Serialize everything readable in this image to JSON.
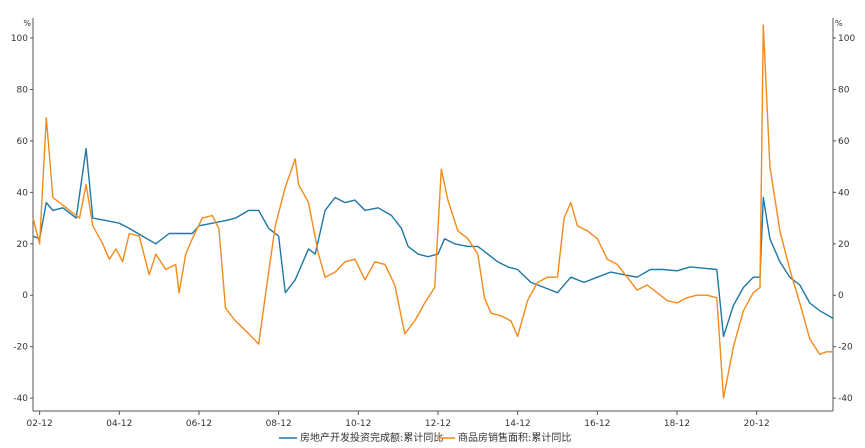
{
  "chart_data": {
    "type": "line",
    "y_unit_left": "%",
    "y_unit_right": "%",
    "ylim": [
      -45,
      110
    ],
    "yticks": [
      -40,
      -20,
      0,
      20,
      40,
      60,
      80,
      100
    ],
    "xlim": [
      "2002-10",
      "2022-11"
    ],
    "xticks": [
      {
        "date": "2002-12",
        "label": "02-12"
      },
      {
        "date": "2004-12",
        "label": "04-12"
      },
      {
        "date": "2006-12",
        "label": "06-12"
      },
      {
        "date": "2008-12",
        "label": "08-12"
      },
      {
        "date": "2010-12",
        "label": "10-12"
      },
      {
        "date": "2012-12",
        "label": "12-12"
      },
      {
        "date": "2014-12",
        "label": "14-12"
      },
      {
        "date": "2016-12",
        "label": "16-12"
      },
      {
        "date": "2018-12",
        "label": "18-12"
      },
      {
        "date": "2020-12",
        "label": "20-12"
      }
    ],
    "grid": false,
    "legend_position": "bottom",
    "series": [
      {
        "name": "房地产开发投资完成额:累计同比",
        "color": "#1f77a4",
        "points": [
          [
            "2002-10",
            23
          ],
          [
            "2002-12",
            22
          ],
          [
            "2003-02",
            36
          ],
          [
            "2003-04",
            33
          ],
          [
            "2003-07",
            34
          ],
          [
            "2003-11",
            30
          ],
          [
            "2004-02",
            57
          ],
          [
            "2004-04",
            30
          ],
          [
            "2004-08",
            29
          ],
          [
            "2004-12",
            28
          ],
          [
            "2005-03",
            26
          ],
          [
            "2005-07",
            23
          ],
          [
            "2005-11",
            20
          ],
          [
            "2006-03",
            24
          ],
          [
            "2006-07",
            24
          ],
          [
            "2006-10",
            24
          ],
          [
            "2006-12",
            27
          ],
          [
            "2007-04",
            28
          ],
          [
            "2007-08",
            29
          ],
          [
            "2007-11",
            30
          ],
          [
            "2008-03",
            33
          ],
          [
            "2008-06",
            33
          ],
          [
            "2008-09",
            26
          ],
          [
            "2008-12",
            23
          ],
          [
            "2009-02",
            1
          ],
          [
            "2009-05",
            6
          ],
          [
            "2009-09",
            18
          ],
          [
            "2009-11",
            16
          ],
          [
            "2010-02",
            33
          ],
          [
            "2010-05",
            38
          ],
          [
            "2010-08",
            36
          ],
          [
            "2010-11",
            37
          ],
          [
            "2011-02",
            33
          ],
          [
            "2011-06",
            34
          ],
          [
            "2011-10",
            31
          ],
          [
            "2012-01",
            26
          ],
          [
            "2012-03",
            19
          ],
          [
            "2012-06",
            16
          ],
          [
            "2012-09",
            15
          ],
          [
            "2012-12",
            16
          ],
          [
            "2013-02",
            22
          ],
          [
            "2013-05",
            20
          ],
          [
            "2013-09",
            19
          ],
          [
            "2013-12",
            19
          ],
          [
            "2014-03",
            16
          ],
          [
            "2014-06",
            13
          ],
          [
            "2014-09",
            11
          ],
          [
            "2014-12",
            10
          ],
          [
            "2015-04",
            5
          ],
          [
            "2015-08",
            3
          ],
          [
            "2015-12",
            1
          ],
          [
            "2016-04",
            7
          ],
          [
            "2016-08",
            5
          ],
          [
            "2016-12",
            7
          ],
          [
            "2017-04",
            9
          ],
          [
            "2017-08",
            8
          ],
          [
            "2017-12",
            7
          ],
          [
            "2018-04",
            10
          ],
          [
            "2018-08",
            10
          ],
          [
            "2018-12",
            9.5
          ],
          [
            "2019-04",
            11
          ],
          [
            "2019-08",
            10.5
          ],
          [
            "2019-12",
            10
          ],
          [
            "2020-02",
            -16
          ],
          [
            "2020-05",
            -4
          ],
          [
            "2020-08",
            3
          ],
          [
            "2020-11",
            7
          ],
          [
            "2021-01",
            7
          ],
          [
            "2021-02",
            38
          ],
          [
            "2021-04",
            22
          ],
          [
            "2021-07",
            13
          ],
          [
            "2021-10",
            7
          ],
          [
            "2022-01",
            4
          ],
          [
            "2022-04",
            -3
          ],
          [
            "2022-07",
            -6
          ],
          [
            "2022-11",
            -9
          ]
        ]
      },
      {
        "name": "商品房销售面积:累计同比",
        "color": "#f28a1c",
        "points": [
          [
            "2002-10",
            30
          ],
          [
            "2002-12",
            20
          ],
          [
            "2003-02",
            69
          ],
          [
            "2003-04",
            38
          ],
          [
            "2003-07",
            35
          ],
          [
            "2003-10",
            32
          ],
          [
            "2003-12",
            30
          ],
          [
            "2004-02",
            43
          ],
          [
            "2004-04",
            27
          ],
          [
            "2004-07",
            20
          ],
          [
            "2004-09",
            14
          ],
          [
            "2004-11",
            18
          ],
          [
            "2005-01",
            13
          ],
          [
            "2005-03",
            24
          ],
          [
            "2005-06",
            23
          ],
          [
            "2005-09",
            8
          ],
          [
            "2005-11",
            16
          ],
          [
            "2006-02",
            10
          ],
          [
            "2006-05",
            12
          ],
          [
            "2006-06",
            1
          ],
          [
            "2006-08",
            16
          ],
          [
            "2006-10",
            22
          ],
          [
            "2007-01",
            30
          ],
          [
            "2007-04",
            31
          ],
          [
            "2007-06",
            26
          ],
          [
            "2007-08",
            -5
          ],
          [
            "2007-11",
            -10
          ],
          [
            "2008-03",
            -15
          ],
          [
            "2008-06",
            -19
          ],
          [
            "2008-08",
            0
          ],
          [
            "2008-11",
            27
          ],
          [
            "2009-02",
            42
          ],
          [
            "2009-05",
            53
          ],
          [
            "2009-06",
            43
          ],
          [
            "2009-09",
            36
          ],
          [
            "2009-12",
            16
          ],
          [
            "2010-02",
            7
          ],
          [
            "2010-05",
            9
          ],
          [
            "2010-08",
            13
          ],
          [
            "2010-11",
            14
          ],
          [
            "2011-02",
            6
          ],
          [
            "2011-05",
            13
          ],
          [
            "2011-08",
            12
          ],
          [
            "2011-11",
            4
          ],
          [
            "2012-02",
            -15
          ],
          [
            "2012-05",
            -10
          ],
          [
            "2012-08",
            -3
          ],
          [
            "2012-11",
            3
          ],
          [
            "2013-01",
            49
          ],
          [
            "2013-03",
            37
          ],
          [
            "2013-06",
            25
          ],
          [
            "2013-09",
            22
          ],
          [
            "2013-12",
            16
          ],
          [
            "2014-02",
            -1
          ],
          [
            "2014-04",
            -7
          ],
          [
            "2014-07",
            -8
          ],
          [
            "2014-10",
            -10
          ],
          [
            "2014-12",
            -16
          ],
          [
            "2015-03",
            -2
          ],
          [
            "2015-06",
            5
          ],
          [
            "2015-09",
            7
          ],
          [
            "2015-12",
            7
          ],
          [
            "2016-02",
            30
          ],
          [
            "2016-04",
            36
          ],
          [
            "2016-06",
            27
          ],
          [
            "2016-09",
            25
          ],
          [
            "2016-12",
            22
          ],
          [
            "2017-03",
            14
          ],
          [
            "2017-06",
            12
          ],
          [
            "2017-09",
            7
          ],
          [
            "2017-12",
            2
          ],
          [
            "2018-03",
            4
          ],
          [
            "2018-06",
            1
          ],
          [
            "2018-09",
            -2
          ],
          [
            "2018-12",
            -3
          ],
          [
            "2019-03",
            -1
          ],
          [
            "2019-06",
            0
          ],
          [
            "2019-09",
            0
          ],
          [
            "2019-12",
            -1
          ],
          [
            "2020-02",
            -40
          ],
          [
            "2020-05",
            -20
          ],
          [
            "2020-08",
            -6
          ],
          [
            "2020-11",
            1
          ],
          [
            "2021-01",
            3
          ],
          [
            "2021-02",
            105
          ],
          [
            "2021-04",
            50
          ],
          [
            "2021-07",
            25
          ],
          [
            "2021-10",
            10
          ],
          [
            "2022-01",
            -3
          ],
          [
            "2022-04",
            -17
          ],
          [
            "2022-07",
            -23
          ],
          [
            "2022-09",
            -22
          ],
          [
            "2022-11",
            -22
          ]
        ]
      }
    ]
  }
}
